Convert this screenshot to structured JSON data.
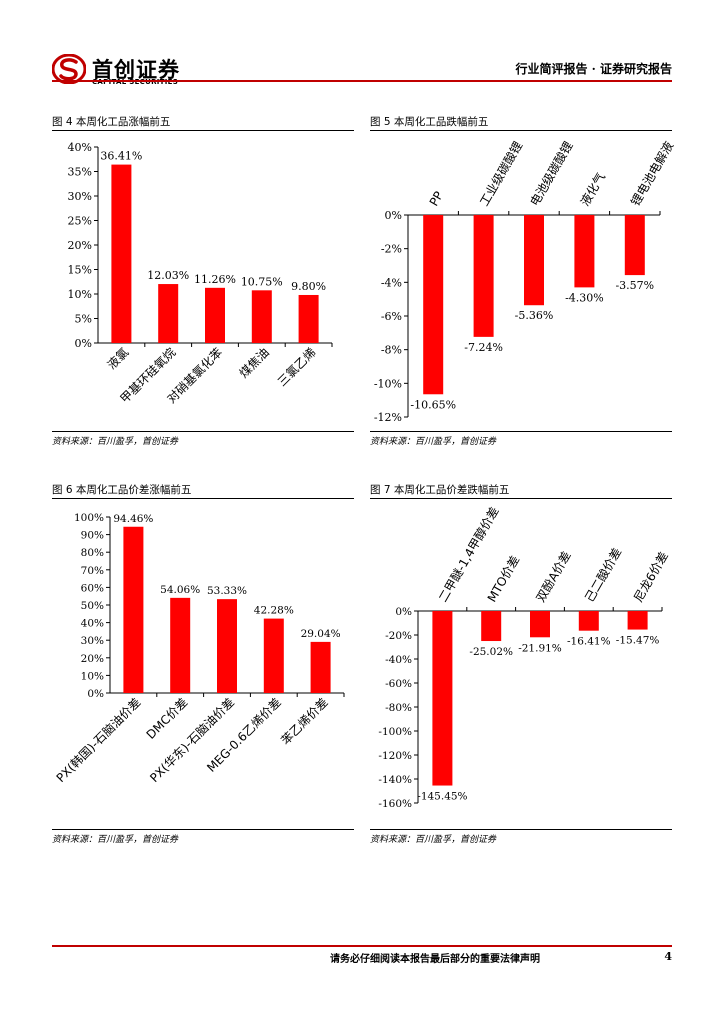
{
  "header": {
    "logo_text": "首创证券",
    "logo_en": "CAPITAL SECURITIES",
    "report_type": "行业简评报告 · 证券研究报告",
    "brand_color": "#c00000"
  },
  "footer": {
    "disclaimer": "请务必仔细阅读本报告最后部分的重要法律声明",
    "page": "4"
  },
  "bar_color": "#ff0000",
  "charts": [
    {
      "title": "图 4 本周化工品涨幅前五",
      "source": "资料来源：百川盈孚，首创证券"
    },
    {
      "title": "图 5 本周化工品跌幅前五",
      "source": "资料来源：百川盈孚，首创证券"
    },
    {
      "title": "图 6 本周化工品价差涨幅前五",
      "source": "资料来源：百川盈孚，首创证券"
    },
    {
      "title": "图 7 本周化工品价差跌幅前五",
      "source": "资料来源：百川盈孚，首创证券"
    }
  ],
  "chart_data": [
    {
      "type": "bar",
      "title": "图 4 本周化工品涨幅前五",
      "categories": [
        "液氯",
        "甲基环硅氧烷",
        "对硝基氯化苯",
        "煤焦油",
        "三氯乙烯"
      ],
      "values": [
        36.41,
        12.03,
        11.26,
        10.75,
        9.8
      ],
      "labels": [
        "36.41%",
        "12.03%",
        "11.26%",
        "10.75%",
        "9.80%"
      ],
      "ylim": [
        0,
        40
      ],
      "yticks": [
        0,
        5,
        10,
        15,
        20,
        25,
        30,
        35,
        40
      ],
      "ytick_labels": [
        "0%",
        "5%",
        "10%",
        "15%",
        "20%",
        "25%",
        "30%",
        "35%",
        "40%"
      ],
      "category_position": "bottom",
      "grid": false
    },
    {
      "type": "bar",
      "title": "图 5 本周化工品跌幅前五",
      "categories": [
        "PP",
        "工业级碳酸锂",
        "电池级碳酸锂",
        "液化气",
        "锂电池电解液"
      ],
      "values": [
        -10.65,
        -7.24,
        -5.36,
        -4.3,
        -3.57
      ],
      "labels": [
        "-10.65%",
        "-7.24%",
        "-5.36%",
        "-4.30%",
        "-3.57%"
      ],
      "ylim": [
        -12,
        0
      ],
      "yticks": [
        0,
        -2,
        -4,
        -6,
        -8,
        -10,
        -12
      ],
      "ytick_labels": [
        "0%",
        "-2%",
        "-4%",
        "-6%",
        "-8%",
        "-10%",
        "-12%"
      ],
      "category_position": "top",
      "grid": false
    },
    {
      "type": "bar",
      "title": "图 6 本周化工品价差涨幅前五",
      "categories": [
        "PX(韩国)-石脑油价差",
        "DMC价差",
        "PX(华东)-石脑油价差",
        "MEG-0.6乙烯价差",
        "苯乙烯价差"
      ],
      "values": [
        94.46,
        54.06,
        53.33,
        42.28,
        29.04
      ],
      "labels": [
        "94.46%",
        "54.06%",
        "53.33%",
        "42.28%",
        "29.04%"
      ],
      "ylim": [
        0,
        100
      ],
      "yticks": [
        0,
        10,
        20,
        30,
        40,
        50,
        60,
        70,
        80,
        90,
        100
      ],
      "ytick_labels": [
        "0%",
        "10%",
        "20%",
        "30%",
        "40%",
        "50%",
        "60%",
        "70%",
        "80%",
        "90%",
        "100%"
      ],
      "category_position": "bottom",
      "grid": false
    },
    {
      "type": "bar",
      "title": "图 7 本周化工品价差跌幅前五",
      "categories": [
        "二甲醚-1,4甲醇价差",
        "MTO价差",
        "双酚A价差",
        "己二酸价差",
        "尼龙6价差"
      ],
      "values": [
        -145.45,
        -25.02,
        -21.91,
        -16.41,
        -15.47
      ],
      "labels": [
        "-145.45%",
        "-25.02%",
        "-21.91%",
        "-16.41%",
        "-15.47%"
      ],
      "ylim": [
        -160,
        0
      ],
      "yticks": [
        0,
        -20,
        -40,
        -60,
        -80,
        -100,
        -120,
        -140,
        -160
      ],
      "ytick_labels": [
        "0%",
        "-20%",
        "-40%",
        "-60%",
        "-80%",
        "-100%",
        "-120%",
        "-140%",
        "-160%"
      ],
      "category_position": "top",
      "grid": false
    }
  ]
}
